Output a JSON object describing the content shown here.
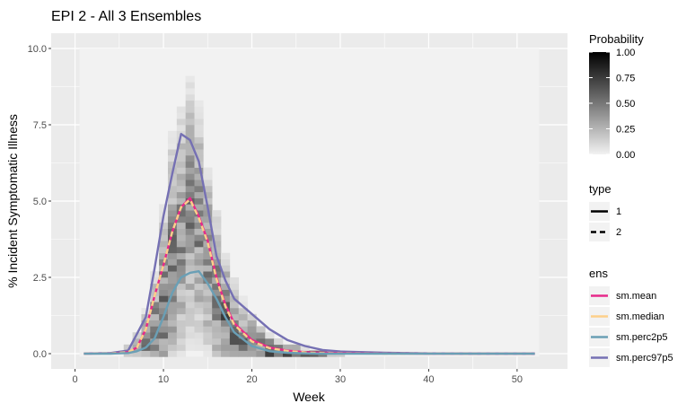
{
  "chart_data": {
    "type": "heatmap",
    "title": "EPI 2 - All 3 Ensembles",
    "xlabel": "Week",
    "ylabel": "% Incident Symptomatic Illness",
    "xlim": [
      -2.7,
      55.7
    ],
    "ylim": [
      -0.5,
      10.5
    ],
    "x_ticks": [
      0,
      10,
      20,
      30,
      40,
      50
    ],
    "x_tick_labels": [
      "0",
      "10",
      "20",
      "30",
      "40",
      "50"
    ],
    "y_ticks": [
      0,
      2.5,
      5,
      7.5,
      10
    ],
    "y_tick_labels": [
      "0.0",
      "2.5",
      "5.0",
      "7.5",
      "10.0"
    ],
    "grid": true,
    "heatmap": {
      "x_range": [
        1,
        52
      ],
      "y_range": [
        0,
        10
      ],
      "description_legend": "Probability",
      "fill_scale": {
        "title": "Probability",
        "low": 0.0,
        "high": 1.0,
        "low_color": "#f2f2f2",
        "high_color": "#000000"
      },
      "column_profiles": [
        {
          "week": 6,
          "peak_y": 0.1,
          "spread": 0.3,
          "max_p": 0.35
        },
        {
          "week": 7,
          "peak_y": 0.2,
          "spread": 0.6,
          "max_p": 0.6
        },
        {
          "week": 8,
          "peak_y": 0.4,
          "spread": 1.2,
          "max_p": 0.75
        },
        {
          "week": 9,
          "peak_y": 0.7,
          "spread": 2.2,
          "max_p": 0.8
        },
        {
          "week": 10,
          "peak_y": 1.6,
          "spread": 3.6,
          "max_p": 0.8
        },
        {
          "week": 11,
          "peak_y": 3.0,
          "spread": 4.6,
          "max_p": 0.75
        },
        {
          "week": 12,
          "peak_y": 4.0,
          "spread": 4.8,
          "max_p": 0.7
        },
        {
          "week": 13,
          "peak_y": 4.6,
          "spread": 4.8,
          "max_p": 0.7
        },
        {
          "week": 14,
          "peak_y": 4.2,
          "spread": 4.4,
          "max_p": 0.7
        },
        {
          "week": 15,
          "peak_y": 3.0,
          "spread": 3.6,
          "max_p": 0.7
        },
        {
          "week": 16,
          "peak_y": 2.0,
          "spread": 3.0,
          "max_p": 0.75
        },
        {
          "week": 17,
          "peak_y": 1.2,
          "spread": 2.4,
          "max_p": 0.8
        },
        {
          "week": 18,
          "peak_y": 0.7,
          "spread": 2.0,
          "max_p": 0.8
        },
        {
          "week": 19,
          "peak_y": 0.4,
          "spread": 1.5,
          "max_p": 0.85
        },
        {
          "week": 20,
          "peak_y": 0.2,
          "spread": 1.2,
          "max_p": 0.9
        },
        {
          "week": 21,
          "peak_y": 0.1,
          "spread": 0.9,
          "max_p": 0.9
        },
        {
          "week": 22,
          "peak_y": 0.05,
          "spread": 0.7,
          "max_p": 0.95
        },
        {
          "week": 23,
          "peak_y": 0.05,
          "spread": 0.5,
          "max_p": 0.95
        },
        {
          "week": 24,
          "peak_y": 0.0,
          "spread": 0.4,
          "max_p": 0.95
        },
        {
          "week": 25,
          "peak_y": 0.0,
          "spread": 0.3,
          "max_p": 0.9
        },
        {
          "week": 26,
          "peak_y": 0.0,
          "spread": 0.25,
          "max_p": 0.85
        },
        {
          "week": 27,
          "peak_y": 0.0,
          "spread": 0.2,
          "max_p": 0.75
        },
        {
          "week": 28,
          "peak_y": 0.0,
          "spread": 0.15,
          "max_p": 0.6
        },
        {
          "week": 29,
          "peak_y": 0.0,
          "spread": 0.1,
          "max_p": 0.45
        },
        {
          "week": 30,
          "peak_y": 0.0,
          "spread": 0.1,
          "max_p": 0.3
        }
      ]
    },
    "series": [
      {
        "name": "sm.perc97p5",
        "color": "#7570b3",
        "type": "1",
        "x": [
          1,
          4,
          6,
          8,
          9,
          10,
          11,
          12,
          13,
          14,
          15,
          16,
          17,
          18,
          20,
          22,
          24,
          26,
          28,
          30,
          35,
          40,
          45,
          52
        ],
        "y": [
          0.0,
          0.02,
          0.1,
          1.2,
          2.8,
          4.5,
          5.9,
          7.2,
          7.0,
          6.3,
          4.8,
          3.2,
          2.4,
          1.8,
          1.3,
          0.8,
          0.45,
          0.25,
          0.12,
          0.07,
          0.03,
          0.01,
          0.0,
          0.0
        ]
      },
      {
        "name": "sm.mean",
        "color": "#e7298a",
        "type": "1",
        "x": [
          1,
          4,
          6,
          7,
          8,
          9,
          10,
          11,
          12,
          13,
          14,
          15,
          16,
          17,
          18,
          20,
          22,
          24,
          26,
          28,
          30,
          35,
          40,
          45,
          52
        ],
        "y": [
          0.0,
          0.01,
          0.05,
          0.2,
          0.8,
          1.9,
          2.9,
          4.0,
          4.8,
          5.1,
          4.5,
          3.7,
          2.5,
          1.6,
          1.0,
          0.45,
          0.2,
          0.1,
          0.05,
          0.03,
          0.02,
          0.01,
          0.0,
          0.0,
          0.0
        ]
      },
      {
        "name": "sm.median",
        "color": "#fdd08a",
        "type": "2",
        "x": [
          1,
          4,
          6,
          7,
          8,
          9,
          10,
          11,
          12,
          13,
          14,
          15,
          16,
          17,
          18,
          20,
          22,
          24,
          26,
          28,
          30,
          35,
          40,
          45,
          52
        ],
        "y": [
          0.0,
          0.01,
          0.05,
          0.2,
          0.8,
          1.9,
          2.9,
          4.0,
          4.8,
          5.05,
          4.45,
          3.65,
          2.45,
          1.55,
          0.95,
          0.4,
          0.18,
          0.09,
          0.04,
          0.02,
          0.01,
          0.0,
          0.0,
          0.0,
          0.0
        ]
      },
      {
        "name": "sm.perc2p5",
        "color": "#6a9fb5",
        "type": "1",
        "x": [
          1,
          4,
          6,
          7,
          8,
          9,
          10,
          11,
          12,
          13,
          14,
          15,
          16,
          17,
          18,
          20,
          22,
          24,
          26,
          28,
          30,
          35,
          40,
          45,
          52
        ],
        "y": [
          0.0,
          0.0,
          0.02,
          0.08,
          0.2,
          0.5,
          1.2,
          2.0,
          2.5,
          2.65,
          2.7,
          2.3,
          1.8,
          1.2,
          0.7,
          0.25,
          0.08,
          0.03,
          0.01,
          0.0,
          0.0,
          0.0,
          0.0,
          0.0,
          0.0
        ]
      }
    ],
    "legends": [
      {
        "title": "Probability",
        "kind": "colorbar",
        "labels": [
          "1.00",
          "0.75",
          "0.50",
          "0.25",
          "0.00"
        ],
        "values": [
          1.0,
          0.75,
          0.5,
          0.25,
          0.0
        ]
      },
      {
        "title": "type",
        "kind": "linetype",
        "entries": [
          {
            "label": "1",
            "dash": "solid"
          },
          {
            "label": "2",
            "dash": "dashed"
          }
        ]
      },
      {
        "title": "ens",
        "kind": "color",
        "entries": [
          {
            "label": "sm.mean",
            "color": "#e7298a"
          },
          {
            "label": "sm.median",
            "color": "#fdd08a"
          },
          {
            "label": "sm.perc2p5",
            "color": "#6a9fb5"
          },
          {
            "label": "sm.perc97p5",
            "color": "#7570b3"
          }
        ]
      }
    ],
    "legend_position": "right",
    "panel_background": "#ebebeb",
    "grid_color": "#ffffff"
  }
}
